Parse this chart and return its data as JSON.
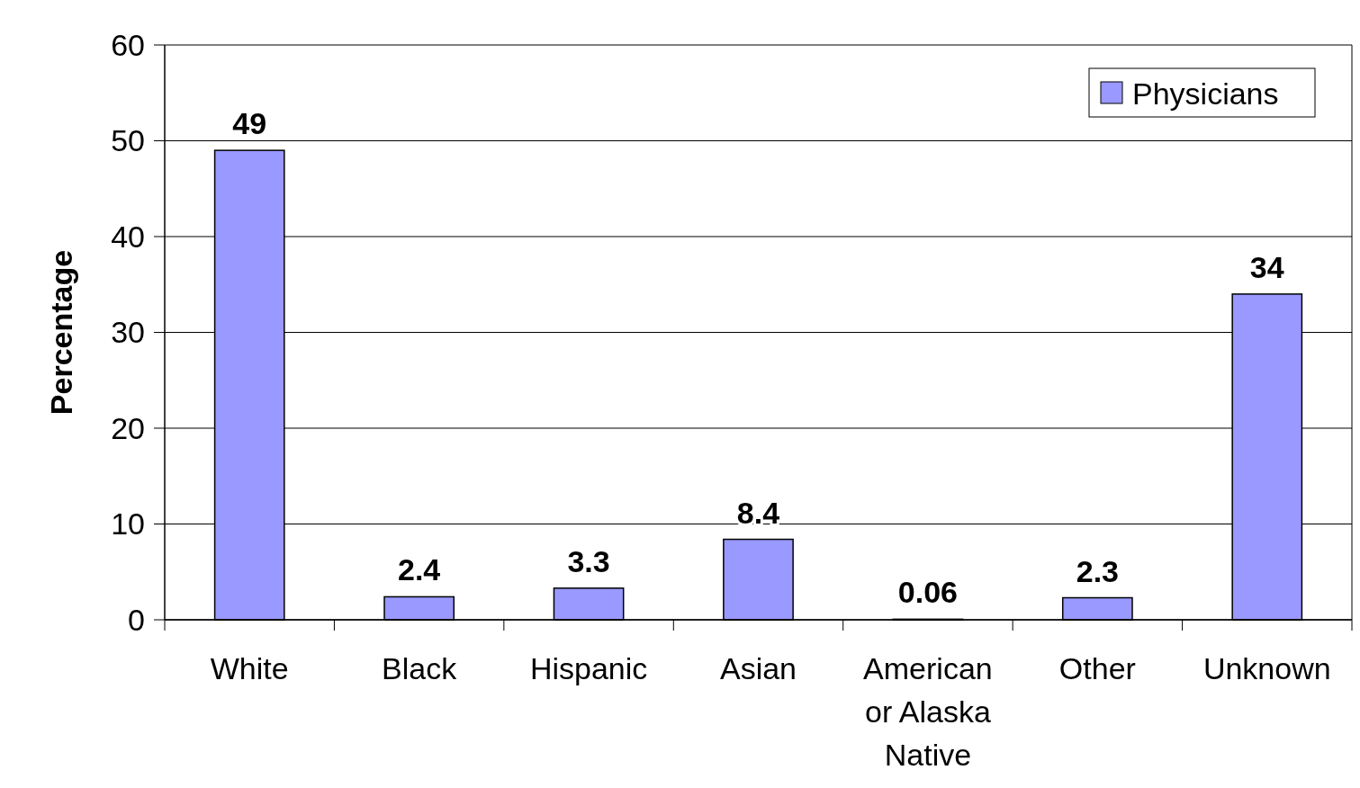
{
  "chart_data": {
    "type": "bar",
    "ylabel": "Percentage",
    "categories": [
      "White",
      "Black",
      "Hispanic",
      "Asian",
      "American or Alaska Native",
      "Other",
      "Unknown"
    ],
    "series": [
      {
        "name": "Physicians",
        "color": "#9999ff",
        "values": [
          49,
          2.4,
          3.3,
          8.4,
          0.06,
          2.3,
          34
        ]
      }
    ],
    "ylim": [
      0,
      60
    ],
    "yticks": [
      0,
      10,
      20,
      30,
      40,
      50,
      60
    ],
    "grid": "y",
    "legend": "top right",
    "data_labels": true
  }
}
